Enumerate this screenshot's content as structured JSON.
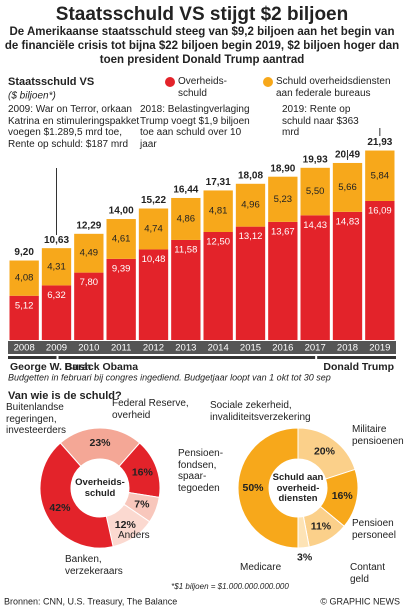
{
  "header": {
    "title": "Staatsschuld VS stijgt $2 biljoen",
    "subtitle": "De Amerikaanse staatsschuld steeg van $9,2 biljoen aan het begin van de financiële crisis tot bijna $22 biljoen begin 2019, $2 biljoen hoger dan toen president Donald Trump aantrad"
  },
  "chart_data": [
    {
      "type": "bar",
      "stacked": true,
      "title": "Staatsschuld VS",
      "unit": "($ biljoen*)",
      "categories": [
        "2008",
        "2009",
        "2010",
        "2011",
        "2012",
        "2013",
        "2014",
        "2015",
        "2016",
        "2017",
        "2018",
        "2019"
      ],
      "series": [
        {
          "name": "Overheids-schuld",
          "color": "#e3232a",
          "values": [
            5.12,
            6.32,
            7.8,
            9.39,
            10.48,
            11.58,
            12.5,
            13.12,
            13.67,
            14.43,
            14.83,
            16.09
          ],
          "value_labels": [
            "5,12",
            "6,32",
            "7,80",
            "9,39",
            "10,48",
            "11,58",
            "12,50",
            "13,12",
            "13,67",
            "14,43",
            "14,83",
            "16,09"
          ]
        },
        {
          "name": "Schuld overheidsdiensten aan federale bureaus",
          "color": "#f7a81b",
          "values": [
            4.08,
            4.31,
            4.49,
            4.61,
            4.74,
            4.86,
            4.81,
            4.96,
            5.23,
            5.5,
            5.66,
            5.84
          ],
          "value_labels": [
            "4,08",
            "4,31",
            "4,49",
            "4,61",
            "4,74",
            "4,86",
            "4,81",
            "4,96",
            "5,23",
            "5,50",
            "5,66",
            "5,84"
          ]
        }
      ],
      "total_labels": [
        "9,20",
        "10,63",
        "12,29",
        "14,00",
        "15,22",
        "16,44",
        "17,31",
        "18,08",
        "18,90",
        "19,93",
        "20,49",
        "21,93"
      ],
      "ylim": [
        0,
        25
      ],
      "annotations": [
        "2009: War on Terror, orkaan Katrina en stimuleringspakket voegen $1.289,5 mrd toe, Rente op schuld: $187 mrd",
        "2018: Belastingverlaging Trump voegt $1,9 biljoen toe aan schuld over 10 jaar",
        "2019: Rente op schuld naar $363 mrd"
      ],
      "presidents": [
        "George W. Bush",
        "Barack Obama",
        "Donald Trump"
      ],
      "note": "Budgetten in februari bij congres ingediend. Budgetjaar loopt van 1 okt tot 30 sep"
    },
    {
      "type": "donut",
      "title": "Van wie is de schuld?",
      "center_label": "Overheids-schuld",
      "categories": [
        "Federal Reserve, overheid",
        "Pensioen-fondsen, spaar-tegoeden",
        "Banken, verzekeraars",
        "Anders",
        "Buitenlandse regeringen, investeerders"
      ],
      "values": [
        23,
        16,
        7,
        12,
        42
      ],
      "value_labels": [
        "23%",
        "16%",
        "7%",
        "12%",
        "42%"
      ],
      "colors": [
        "#f4a796",
        "#e3232a",
        "#f8c7bc",
        "#fbd9d0",
        "#e3232a"
      ]
    },
    {
      "type": "donut",
      "center_label": "Schuld aan overheid-diensten",
      "categories": [
        "Militaire pensioenen",
        "Pensioen personeel",
        "Contant geld",
        "Medicare",
        "Sociale zekerheid, invaliditeitsverzekering"
      ],
      "values": [
        20,
        16,
        11,
        3,
        50
      ],
      "value_labels": [
        "20%",
        "16%",
        "11%",
        "3%",
        "50%"
      ],
      "colors": [
        "#fbd08a",
        "#f7a81b",
        "#fbd08a",
        "#fde3b5",
        "#f7a81b"
      ]
    }
  ],
  "footer": {
    "footnote": "*$1 biljoen = $1.000.000.000.000",
    "source": "Bronnen: CNN, U.S. Treasury, The Balance",
    "credit": "© GRAPHIC NEWS"
  }
}
